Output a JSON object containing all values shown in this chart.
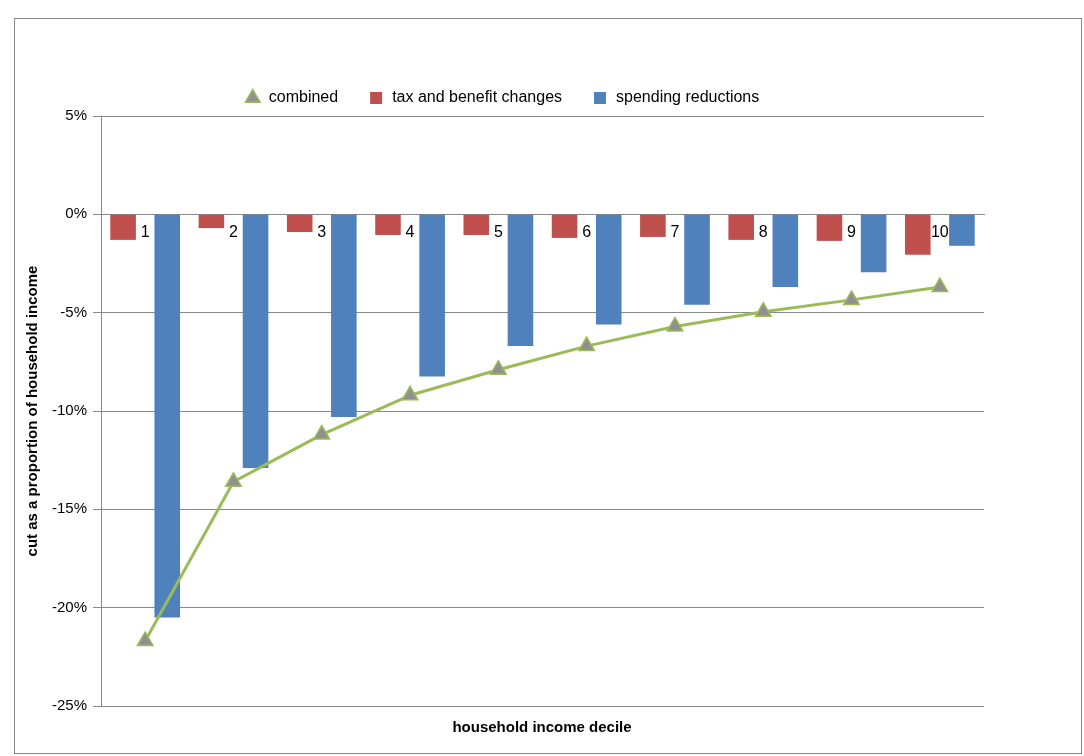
{
  "chart_data": {
    "type": "bar",
    "xlabel": "household income decile",
    "ylabel": "cut as a proportion of household income",
    "categories": [
      "1",
      "2",
      "3",
      "4",
      "5",
      "6",
      "7",
      "8",
      "9",
      "10"
    ],
    "series": [
      {
        "name": "tax and benefit changes",
        "color": "#c0504d",
        "values": [
          -1.3,
          -0.7,
          -0.9,
          -1.05,
          -1.05,
          -1.2,
          -1.15,
          -1.3,
          -1.35,
          -2.05
        ]
      },
      {
        "name": "spending reductions",
        "color": "#4f81bd",
        "values": [
          -20.5,
          -12.9,
          -10.3,
          -8.25,
          -6.7,
          -5.6,
          -4.6,
          -3.7,
          -2.95,
          -1.6
        ]
      },
      {
        "name": "combined",
        "type": "line",
        "color": "#9bbb59",
        "marker": "triangle",
        "values": [
          -21.7,
          -13.6,
          -11.2,
          -9.2,
          -7.9,
          -6.7,
          -5.7,
          -4.95,
          -4.35,
          -3.7
        ]
      }
    ],
    "ylim": [
      -25,
      5
    ],
    "yticks": [
      {
        "value": -25,
        "label": "-25%"
      },
      {
        "value": -20,
        "label": "-20%"
      },
      {
        "value": -15,
        "label": "-15%"
      },
      {
        "value": -10,
        "label": "-10%"
      },
      {
        "value": -5,
        "label": "-5%"
      },
      {
        "value": 0,
        "label": "0%"
      },
      {
        "value": 5,
        "label": "5%"
      }
    ],
    "grid": "y",
    "legend": "top"
  }
}
